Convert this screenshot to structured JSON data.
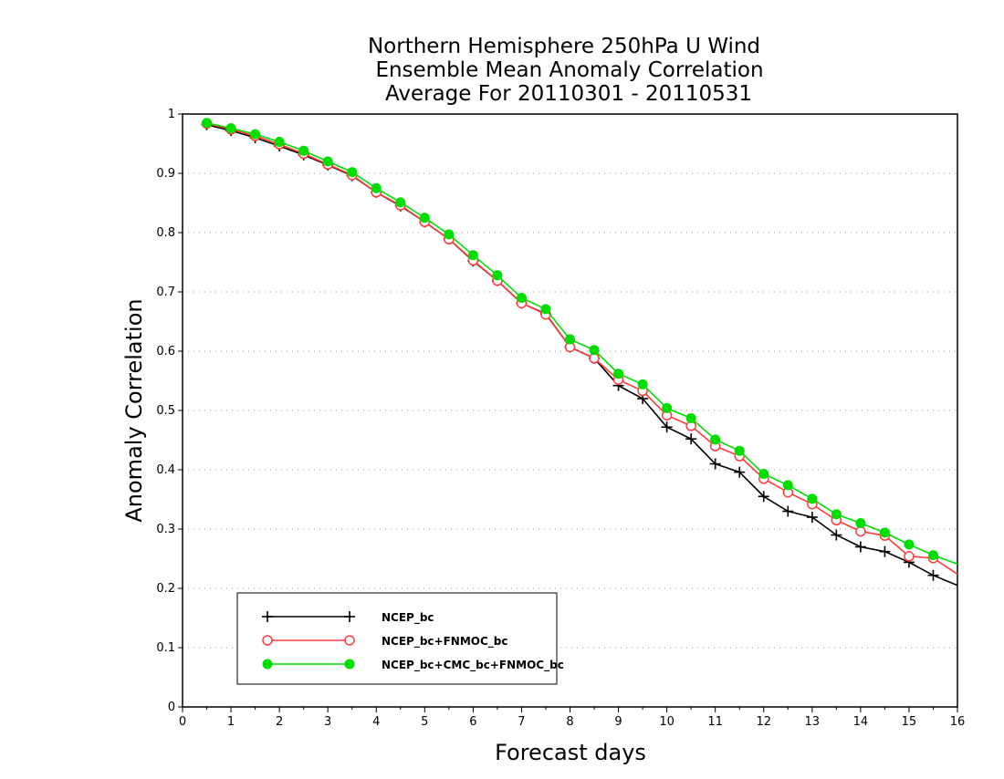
{
  "chart_data": {
    "type": "line",
    "title_lines": [
      "Northern Hemisphere 250hPa U Wind",
      "Ensemble Mean Anomaly Correlation",
      "Average For 20110301 - 20110531"
    ],
    "xlabel": "Forecast days",
    "ylabel": "Anomaly Correlation",
    "xlim": [
      0,
      16
    ],
    "ylim": [
      0,
      1
    ],
    "x_ticks": [
      "0",
      "1",
      "2",
      "3",
      "4",
      "5",
      "6",
      "7",
      "8",
      "9",
      "10",
      "11",
      "12",
      "13",
      "14",
      "15",
      "16"
    ],
    "y_ticks": [
      "0",
      "0.1",
      "0.2",
      "0.3",
      "0.4",
      "0.5",
      "0.6",
      "0.7",
      "0.8",
      "0.9",
      "1"
    ],
    "grid": "horizontal-dotted",
    "legend_position": "bottom-left",
    "x": [
      0.5,
      1,
      1.5,
      2,
      2.5,
      3,
      3.5,
      4,
      4.5,
      5,
      5.5,
      6,
      6.5,
      7,
      7.5,
      8,
      8.5,
      9,
      9.5,
      10,
      10.5,
      11,
      11.5,
      12,
      12.5,
      13,
      13.5,
      14,
      14.5,
      15,
      15.5,
      16
    ],
    "series": [
      {
        "name": "NCEP_bc",
        "color": "#000000",
        "marker": "plus",
        "values": [
          0.982,
          0.972,
          0.96,
          0.946,
          0.931,
          0.914,
          0.896,
          0.868,
          0.845,
          0.818,
          0.789,
          0.752,
          0.719,
          0.681,
          0.663,
          0.607,
          0.588,
          0.542,
          0.52,
          0.472,
          0.452,
          0.41,
          0.396,
          0.355,
          0.33,
          0.32,
          0.29,
          0.27,
          0.262,
          0.244,
          0.222,
          0.205
        ]
      },
      {
        "name": "NCEP_bc+FNMOC_bc",
        "color": "#ff3b3b",
        "marker": "open-circle",
        "values": [
          0.984,
          0.974,
          0.963,
          0.949,
          0.933,
          0.915,
          0.897,
          0.868,
          0.846,
          0.818,
          0.789,
          0.753,
          0.719,
          0.681,
          0.662,
          0.607,
          0.588,
          0.552,
          0.533,
          0.492,
          0.474,
          0.44,
          0.423,
          0.385,
          0.362,
          0.342,
          0.315,
          0.296,
          0.289,
          0.254,
          0.251,
          0.224
        ]
      },
      {
        "name": "NCEP_bc+CMC_bc+FNMOC_bc",
        "color": "#00dd00",
        "marker": "filled-circle",
        "values": [
          0.985,
          0.976,
          0.966,
          0.953,
          0.938,
          0.92,
          0.902,
          0.875,
          0.851,
          0.825,
          0.797,
          0.762,
          0.728,
          0.69,
          0.671,
          0.62,
          0.602,
          0.562,
          0.544,
          0.504,
          0.487,
          0.451,
          0.432,
          0.393,
          0.374,
          0.351,
          0.325,
          0.31,
          0.294,
          0.274,
          0.256,
          0.241
        ]
      }
    ]
  }
}
